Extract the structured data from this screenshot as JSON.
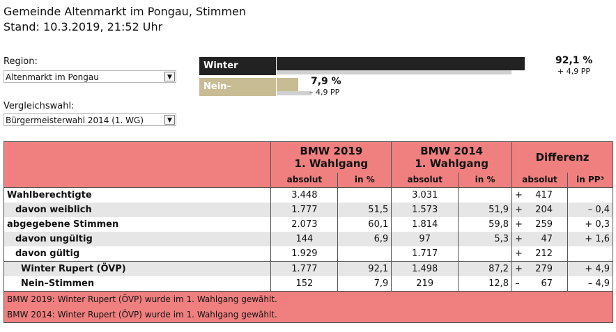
{
  "header": {
    "title": "Gemeinde Altenmarkt im Pongau, Stimmen",
    "stand": "Stand: 10.3.2019, 21:52 Uhr"
  },
  "region": {
    "label": "Region:",
    "selected": "Altenmarkt im Pongau"
  },
  "vergleich": {
    "label": "Vergleichswahl:",
    "selected": "Bürgermeisterwahl 2014 (1. WG)"
  },
  "results": [
    {
      "name": "Winter Rupert",
      "value": "92,1 %",
      "diff": "+ 4,9 PP",
      "pct": 92.1,
      "pct_prev": 87.2,
      "color": "#222222"
    },
    {
      "name": "Nein–Stimmen",
      "value": "7,9 %",
      "diff": "– 4,9 PP",
      "pct": 7.9,
      "pct_prev": 12.8,
      "color": "#c8bc94"
    }
  ],
  "table": {
    "h2019a": "BMW 2019",
    "h2019b": "1. Wahlgang",
    "h2014a": "BMW 2014",
    "h2014b": "1. Wahlgang",
    "hdiff": "Differenz",
    "sub": {
      "abs": "absolut",
      "pct": "in %",
      "pp": "in PP³"
    },
    "rows": [
      {
        "label": "Wahlberechtigte",
        "a19": "3.448",
        "p19": "",
        "a14": "3.031",
        "p14": "",
        "sign": "+",
        "dabs": "417",
        "dpp": ""
      },
      {
        "label": "davon weiblich",
        "a19": "1.777",
        "p19": "51,5",
        "a14": "1.573",
        "p14": "51,9",
        "sign": "+",
        "dabs": "204",
        "dpp": "– 0,4"
      },
      {
        "label": "abgegebene Stimmen",
        "a19": "2.073",
        "p19": "60,1",
        "a14": "1.814",
        "p14": "59,8",
        "sign": "+",
        "dabs": "259",
        "dpp": "+ 0,3"
      },
      {
        "label": "davon ungültig",
        "a19": "144",
        "p19": "6,9",
        "a14": "97",
        "p14": "5,3",
        "sign": "+",
        "dabs": "47",
        "dpp": "+ 1,6"
      },
      {
        "label": "davon gültig",
        "a19": "1.929",
        "p19": "",
        "a14": "1.717",
        "p14": "",
        "sign": "+",
        "dabs": "212",
        "dpp": ""
      },
      {
        "label": "Winter Rupert (ÖVP)",
        "a19": "1.777",
        "p19": "92,1",
        "a14": "1.498",
        "p14": "87,2",
        "sign": "+",
        "dabs": "279",
        "dpp": "+ 4,9"
      },
      {
        "label": "Nein–Stimmen",
        "a19": "152",
        "p19": "7,9",
        "a14": "219",
        "p14": "12,8",
        "sign": "–",
        "dabs": "67",
        "dpp": "– 4,9"
      }
    ],
    "footer": [
      "BMW 2019: Winter Rupert (ÖVP) wurde im 1. Wahlgang gewählt.",
      "BMW 2014: Winter Rupert (ÖVP) wurde im 1. Wahlgang gewählt."
    ]
  }
}
